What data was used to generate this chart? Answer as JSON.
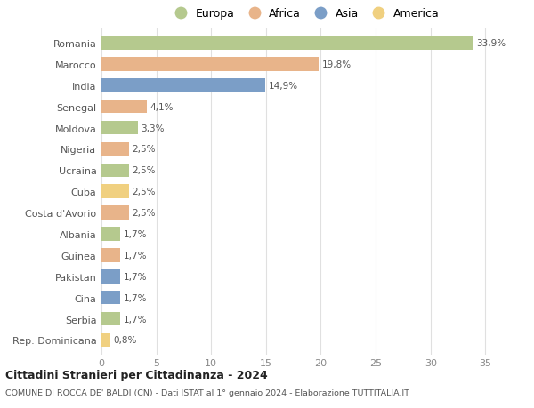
{
  "countries": [
    "Romania",
    "Marocco",
    "India",
    "Senegal",
    "Moldova",
    "Nigeria",
    "Ucraina",
    "Cuba",
    "Costa d'Avorio",
    "Albania",
    "Guinea",
    "Pakistan",
    "Cina",
    "Serbia",
    "Rep. Dominicana"
  ],
  "values": [
    33.9,
    19.8,
    14.9,
    4.1,
    3.3,
    2.5,
    2.5,
    2.5,
    2.5,
    1.7,
    1.7,
    1.7,
    1.7,
    1.7,
    0.8
  ],
  "labels": [
    "33,9%",
    "19,8%",
    "14,9%",
    "4,1%",
    "3,3%",
    "2,5%",
    "2,5%",
    "2,5%",
    "2,5%",
    "1,7%",
    "1,7%",
    "1,7%",
    "1,7%",
    "1,7%",
    "0,8%"
  ],
  "continents": [
    "Europa",
    "Africa",
    "Asia",
    "Africa",
    "Europa",
    "Africa",
    "Europa",
    "America",
    "Africa",
    "Europa",
    "Africa",
    "Asia",
    "Asia",
    "Europa",
    "America"
  ],
  "continent_colors": {
    "Europa": "#b5c98e",
    "Africa": "#e8b48a",
    "Asia": "#7b9ec7",
    "America": "#f0d080"
  },
  "legend_order": [
    "Europa",
    "Africa",
    "Asia",
    "America"
  ],
  "title": "Cittadini Stranieri per Cittadinanza - 2024",
  "subtitle": "COMUNE DI ROCCA DE' BALDI (CN) - Dati ISTAT al 1° gennaio 2024 - Elaborazione TUTTITALIA.IT",
  "xlim": [
    0,
    37
  ],
  "xticks": [
    0,
    5,
    10,
    15,
    20,
    25,
    30,
    35
  ],
  "background_color": "#ffffff",
  "grid_color": "#e0e0e0",
  "bar_height": 0.65
}
